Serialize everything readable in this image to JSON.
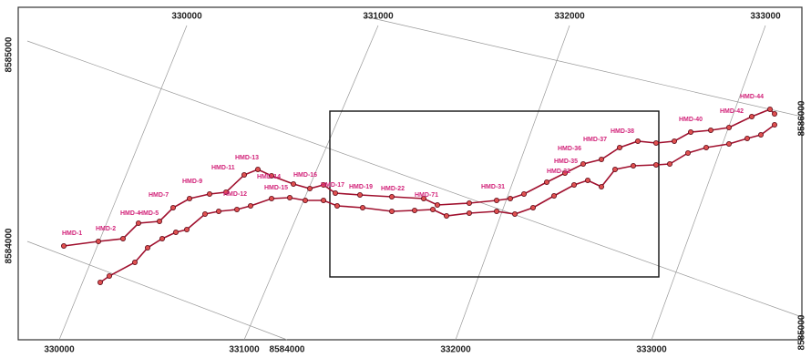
{
  "axes": {
    "top": [
      "330000",
      "331000",
      "332000",
      "333000"
    ],
    "bottom": [
      "330000",
      "331000",
      "8584000",
      "332000",
      "333000"
    ],
    "left": [
      "8585000",
      "8584000"
    ],
    "right": [
      "8586000",
      "8585000"
    ]
  },
  "stations": [
    "HMD-1",
    "HMD-2",
    "HMD-4",
    "HMD-5",
    "HMD-7",
    "HMD-9",
    "HMD-11",
    "HMD-13",
    "HMD-14",
    "HMD-12",
    "HMD-15",
    "HMD-16",
    "HMD-17",
    "HMD-19",
    "HMD-22",
    "HMD-71",
    "HMD-31",
    "HMD-32",
    "HMD-35",
    "HMD-36",
    "HMD-37",
    "HMD-38",
    "HMD-40",
    "HMD-42",
    "HMD-44"
  ]
}
